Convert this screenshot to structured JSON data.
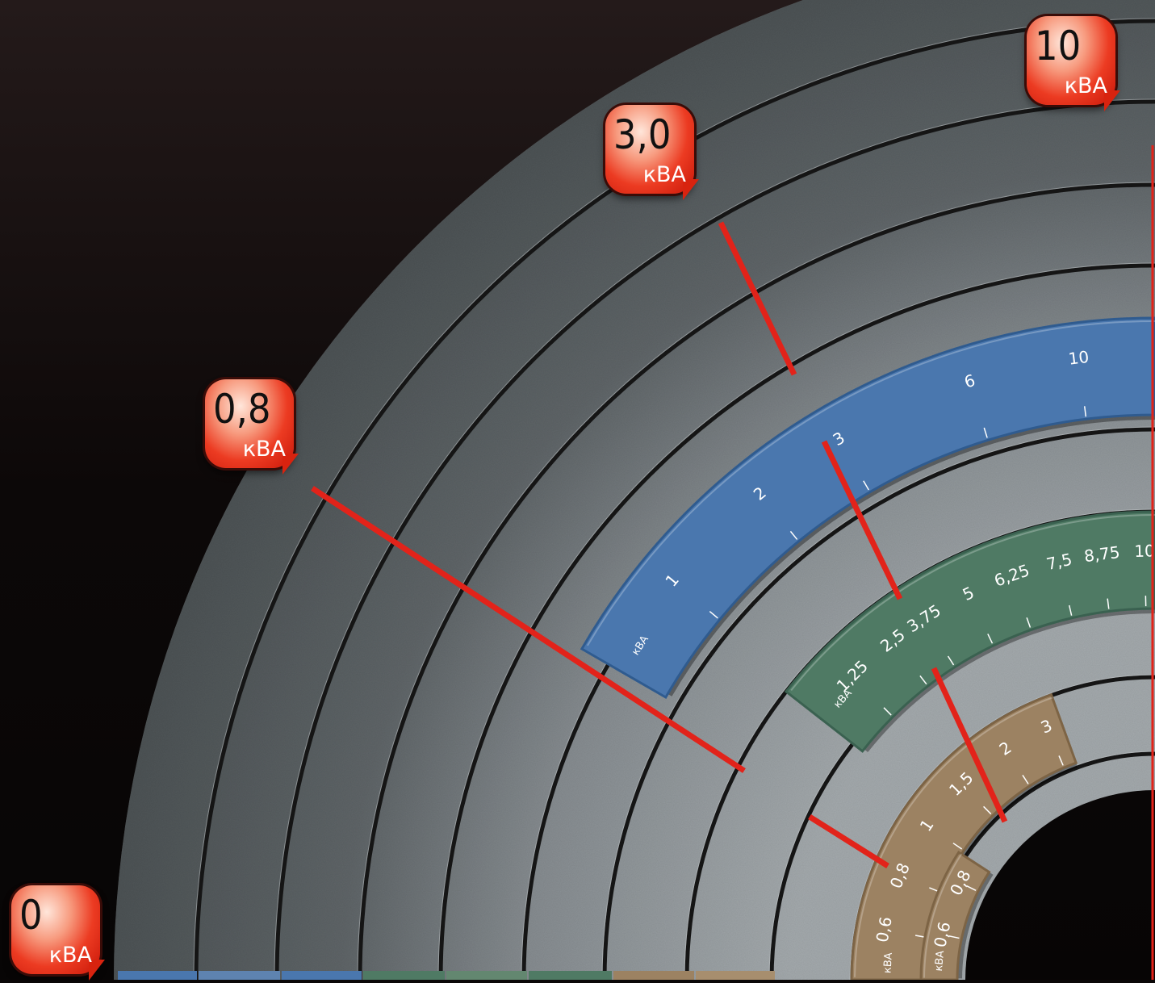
{
  "callouts": [
    {
      "value": "0",
      "unit": "кВА"
    },
    {
      "value": "0,8",
      "unit": "кВА"
    },
    {
      "value": "3,0",
      "unit": "кВА"
    },
    {
      "value": "10",
      "unit": "кВА"
    }
  ],
  "scales": {
    "blue": {
      "unit": "кВА",
      "ticks": [
        {
          "label": "1",
          "value": 1
        },
        {
          "label": "2",
          "value": 2
        },
        {
          "label": "3",
          "value": 3
        },
        {
          "label": "6",
          "value": 6
        },
        {
          "label": "10",
          "value": 10
        }
      ]
    },
    "green": {
      "unit": "кВА",
      "ticks": [
        {
          "label": "1,25",
          "value": 1.25
        },
        {
          "label": "2,5",
          "value": 2.5
        },
        {
          "label": "3,75",
          "value": 3.75
        },
        {
          "label": "5",
          "value": 5
        },
        {
          "label": "6,25",
          "value": 6.25
        },
        {
          "label": "7,5",
          "value": 7.5
        },
        {
          "label": "8,75",
          "value": 8.75
        },
        {
          "label": "10",
          "value": 10
        }
      ]
    },
    "tan_outer": {
      "unit": "кВА",
      "ticks": [
        {
          "label": "0,6",
          "value": 0.6
        },
        {
          "label": "0,8",
          "value": 0.8
        },
        {
          "label": "1",
          "value": 1
        },
        {
          "label": "1,5",
          "value": 1.5
        },
        {
          "label": "2",
          "value": 2
        },
        {
          "label": "3",
          "value": 3
        }
      ]
    },
    "tan_inner": {
      "unit": "кВА",
      "ticks": [
        {
          "label": "0,6",
          "value": 0.6
        },
        {
          "label": "0,8",
          "value": 0.8
        }
      ]
    }
  },
  "colors": {
    "background": "#0b0707",
    "outer_ring": "#5b6163",
    "inner_ring": "#8f9599",
    "blue_band": "#4a77ae",
    "green_band": "#4f7a64",
    "tan_band": "#9c8262",
    "pointer": "#e2231a"
  }
}
